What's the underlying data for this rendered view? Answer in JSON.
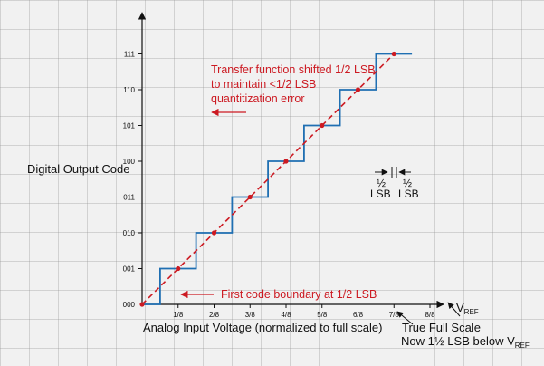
{
  "chart_data": {
    "type": "line",
    "title": "",
    "xlabel": "Analog Input Voltage (normalized to full scale)",
    "ylabel": "Digital Output Code",
    "x_ticks": [
      "1/8",
      "2/8",
      "3/8",
      "4/8",
      "5/8",
      "6/8",
      "7/8",
      "8/8"
    ],
    "y_ticks": [
      "000",
      "001",
      "010",
      "011",
      "100",
      "101",
      "110",
      "111"
    ],
    "xlim": [
      0,
      1
    ],
    "ylim": [
      0,
      7
    ],
    "grid": false,
    "series": [
      {
        "type": "step",
        "color": "#1f6fb2",
        "x": [
          0,
          0.0625,
          0.0625,
          0.1875,
          0.1875,
          0.3125,
          0.3125,
          0.4375,
          0.4375,
          0.5625,
          0.5625,
          0.6875,
          0.6875,
          0.8125,
          0.8125,
          0.9375
        ],
        "y": [
          0,
          0,
          1,
          1,
          2,
          2,
          3,
          3,
          4,
          4,
          5,
          5,
          6,
          6,
          7,
          7
        ]
      },
      {
        "type": "dashed-line",
        "color": "#cc1a22",
        "x": [
          0,
          0.125,
          0.25,
          0.375,
          0.5,
          0.625,
          0.75,
          0.875
        ],
        "y": [
          0,
          1,
          2,
          3,
          4,
          5,
          6,
          7
        ]
      }
    ],
    "annotations": {
      "shift_note": [
        "Transfer function shifted 1/2 LSB",
        "to maintain <1/2 LSB",
        "quantitization error"
      ],
      "first_boundary": "First code boundary at 1/2 LSB",
      "half_lsb_top": [
        "½",
        "½"
      ],
      "half_lsb_bottom": [
        "LSB",
        "LSB"
      ],
      "vref_main": "V",
      "vref_sub": "REF",
      "true_full_scale": "True Full Scale",
      "below_main": "Now 1½ LSB below V",
      "below_sub": "REF"
    }
  }
}
